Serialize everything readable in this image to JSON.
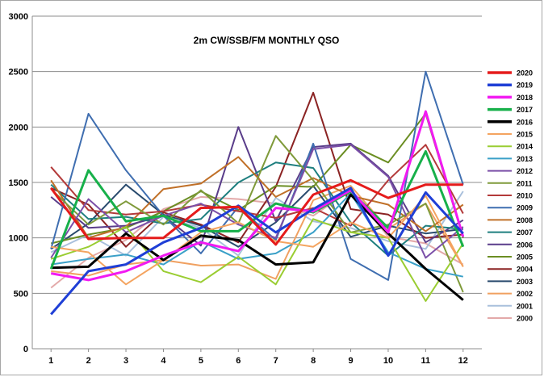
{
  "chart_data": {
    "type": "line",
    "title": "2m CW/SSB/FM  MONTHLY QSO",
    "xlabel": "",
    "ylabel": "",
    "x": [
      1,
      2,
      3,
      4,
      5,
      6,
      7,
      8,
      9,
      10,
      11,
      12
    ],
    "ylim": [
      0,
      3000
    ],
    "yticks": [
      0,
      500,
      1000,
      1500,
      2000,
      2500,
      3000
    ],
    "grid": "horizontal",
    "legend_position": "right",
    "series": [
      {
        "name": "2020",
        "color": "#e51b1b",
        "bold": true,
        "values": [
          1450,
          990,
          1000,
          1000,
          1270,
          1280,
          940,
          1390,
          1520,
          1360,
          1480,
          1480
        ]
      },
      {
        "name": "2019",
        "color": "#1f3fd6",
        "bold": true,
        "values": [
          310,
          700,
          760,
          960,
          1090,
          1290,
          1050,
          1260,
          1450,
          840,
          1410,
          1040
        ]
      },
      {
        "name": "2018",
        "color": "#f21af2",
        "bold": true,
        "values": [
          680,
          620,
          700,
          840,
          960,
          880,
          1270,
          1240,
          1430,
          1050,
          2140,
          1010
        ]
      },
      {
        "name": "2017",
        "color": "#17b04a",
        "bold": true,
        "values": [
          720,
          1610,
          1150,
          1200,
          1060,
          1060,
          1310,
          1230,
          1420,
          1090,
          1780,
          920
        ]
      },
      {
        "name": "2016",
        "color": "#000000",
        "bold": true,
        "values": [
          730,
          740,
          1040,
          800,
          1020,
          980,
          760,
          780,
          1390,
          1040,
          720,
          440
        ]
      },
      {
        "name": "2015",
        "color": "#f4a460",
        "bold": false,
        "values": [
          920,
          870,
          580,
          800,
          1050,
          1140,
          970,
          920,
          1140,
          1000,
          1380,
          740
        ]
      },
      {
        "name": "2014",
        "color": "#9acd32",
        "bold": false,
        "values": [
          810,
          920,
          1100,
          700,
          600,
          830,
          580,
          1170,
          1050,
          1000,
          430,
          950
        ]
      },
      {
        "name": "2013",
        "color": "#3aa0c8",
        "bold": false,
        "values": [
          760,
          810,
          850,
          760,
          970,
          810,
          860,
          1050,
          1400,
          870,
          720,
          650
        ]
      },
      {
        "name": "2012",
        "color": "#7b4fa8",
        "bold": false,
        "values": [
          820,
          1350,
          1050,
          1200,
          1310,
          1120,
          1000,
          1800,
          1840,
          1550,
          820,
          1100
        ]
      },
      {
        "name": "2011",
        "color": "#7f9a3a",
        "bold": false,
        "values": [
          1440,
          1120,
          1330,
          1120,
          1430,
          1130,
          1920,
          1520,
          1050,
          1120,
          1310,
          510
        ]
      },
      {
        "name": "2010",
        "color": "#b33a3a",
        "bold": false,
        "values": [
          1640,
          1250,
          1210,
          1240,
          1300,
          1240,
          1180,
          1270,
          1110,
          1520,
          1840,
          1220
        ]
      },
      {
        "name": "2009",
        "color": "#3f6eb0",
        "bold": false,
        "values": [
          900,
          2120,
          1610,
          1200,
          860,
          1280,
          980,
          1850,
          810,
          620,
          2500,
          1480
        ]
      },
      {
        "name": "2008",
        "color": "#c07028",
        "bold": false,
        "values": [
          1520,
          1000,
          1100,
          1440,
          1490,
          1730,
          1370,
          1540,
          1380,
          1300,
          1060,
          1300
        ]
      },
      {
        "name": "2007",
        "color": "#1e7f7f",
        "bold": false,
        "values": [
          1480,
          1170,
          1190,
          1130,
          1170,
          1500,
          1680,
          1630,
          1140,
          840,
          1110,
          1080
        ]
      },
      {
        "name": "2006",
        "color": "#5a3d8a",
        "bold": false,
        "values": [
          1370,
          1090,
          1110,
          1200,
          930,
          2000,
          1150,
          1820,
          1850,
          1560,
          960,
          1160
        ]
      },
      {
        "name": "2005",
        "color": "#6b8e23",
        "bold": false,
        "values": [
          950,
          1030,
          1090,
          1240,
          1420,
          1250,
          1470,
          1460,
          1840,
          1680,
          2120,
          1000
        ]
      },
      {
        "name": "2004",
        "color": "#8b2323",
        "bold": false,
        "values": [
          1450,
          1300,
          920,
          1230,
          1120,
          960,
          1460,
          2310,
          1260,
          1210,
          1000,
          1030
        ]
      },
      {
        "name": "2003",
        "color": "#2a4b6e",
        "bold": false,
        "values": [
          900,
          1130,
          1480,
          1210,
          1110,
          920,
          1140,
          1470,
          1010,
          1110,
          1040,
          1080
        ]
      },
      {
        "name": "2002",
        "color": "#f0a060",
        "bold": false,
        "values": [
          700,
          660,
          760,
          800,
          750,
          760,
          630,
          1340,
          1470,
          1080,
          1310,
          740
        ]
      },
      {
        "name": "2001",
        "color": "#a9c0dc",
        "bold": false,
        "values": [
          870,
          1030,
          840,
          1190,
          1090,
          840,
          1360,
          1150,
          1090,
          970,
          900,
          1420
        ]
      },
      {
        "name": "2000",
        "color": "#e3a9a9",
        "bold": false,
        "values": [
          550,
          820,
          980,
          1260,
          1370,
          1350,
          1310,
          1200,
          1430,
          1010,
          950,
          760
        ]
      }
    ]
  }
}
